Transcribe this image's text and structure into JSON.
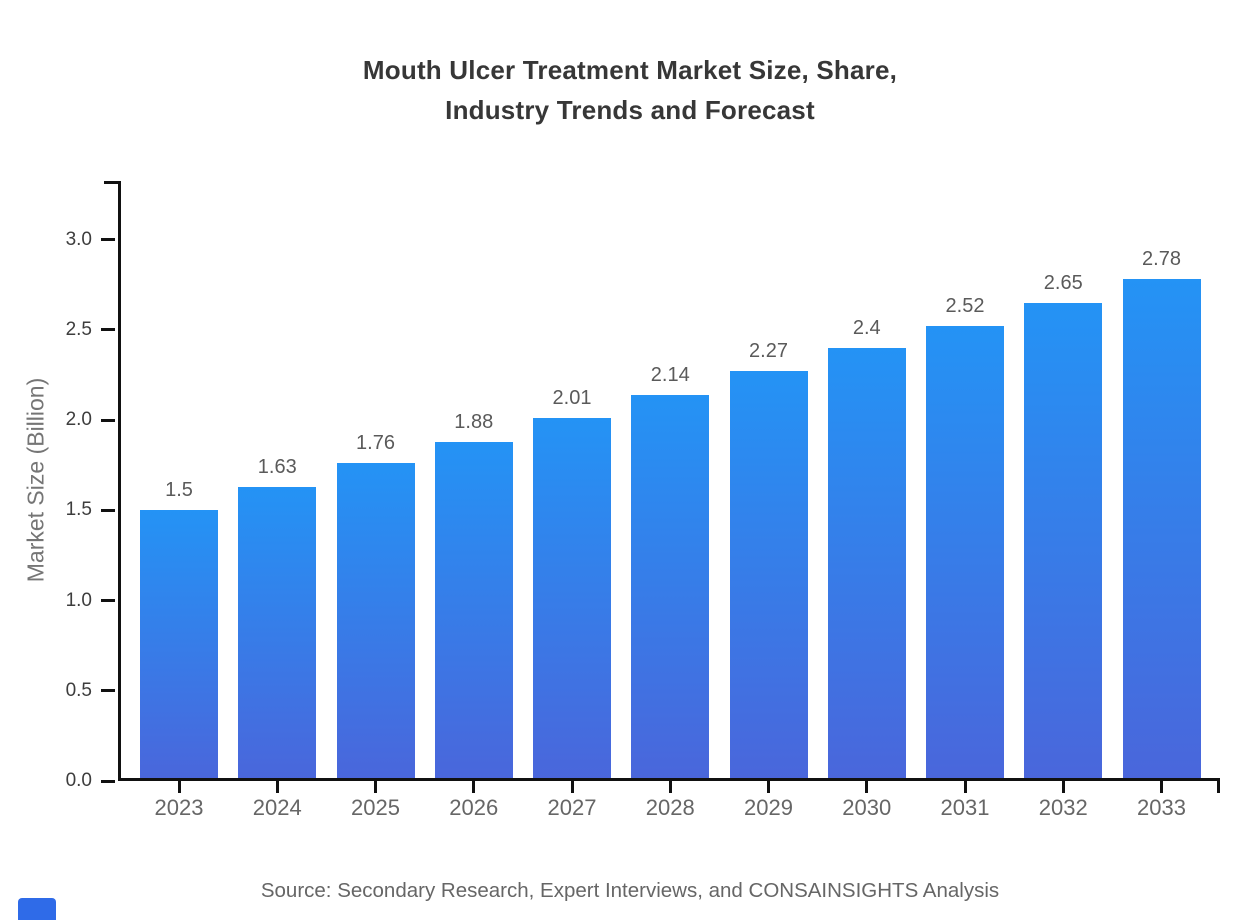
{
  "title": {
    "line1": "Mouth Ulcer Treatment Market Size, Share,",
    "line2": "Industry Trends and Forecast"
  },
  "y_axis_title": "Market Size (Billion)",
  "source": "Source: Secondary Research, Expert Interviews, and CONSAINSIGHTS Analysis",
  "colors": {
    "bar_top": "#2493F5",
    "bar_bottom": "#4A66DB",
    "axis": "#111111",
    "title_text": "#373737",
    "ytick_label": "#3d3d3d",
    "year_label": "#666666",
    "value_label": "#5a5a5a",
    "ylabel_text": "#757575",
    "source_text": "#666666",
    "watermark": "#2F6BE8"
  },
  "chart_data": {
    "type": "bar",
    "title": "Mouth Ulcer Treatment Market Size, Share, Industry Trends and Forecast",
    "categories": [
      "2023",
      "2024",
      "2025",
      "2026",
      "2027",
      "2028",
      "2029",
      "2030",
      "2031",
      "2032",
      "2033"
    ],
    "values": [
      1.5,
      1.63,
      1.76,
      1.88,
      2.01,
      2.14,
      2.27,
      2.4,
      2.52,
      2.65,
      2.78
    ],
    "value_labels": [
      "1.5",
      "1.63",
      "1.76",
      "1.88",
      "2.01",
      "2.14",
      "2.27",
      "2.4",
      "2.52",
      "2.65",
      "2.78"
    ],
    "xlabel": "",
    "ylabel": "Market Size (Billion)",
    "yticks": [
      "0.0",
      "0.5",
      "1.0",
      "1.5",
      "2.0",
      "2.5",
      "3.0"
    ],
    "ylim": [
      0,
      3.325
    ],
    "grid": false,
    "legend": false,
    "bar_gradient": [
      "#2493F5",
      "#4A66DB"
    ],
    "source": "Source: Secondary Research, Expert Interviews, and CONSAINSIGHTS Analysis"
  }
}
